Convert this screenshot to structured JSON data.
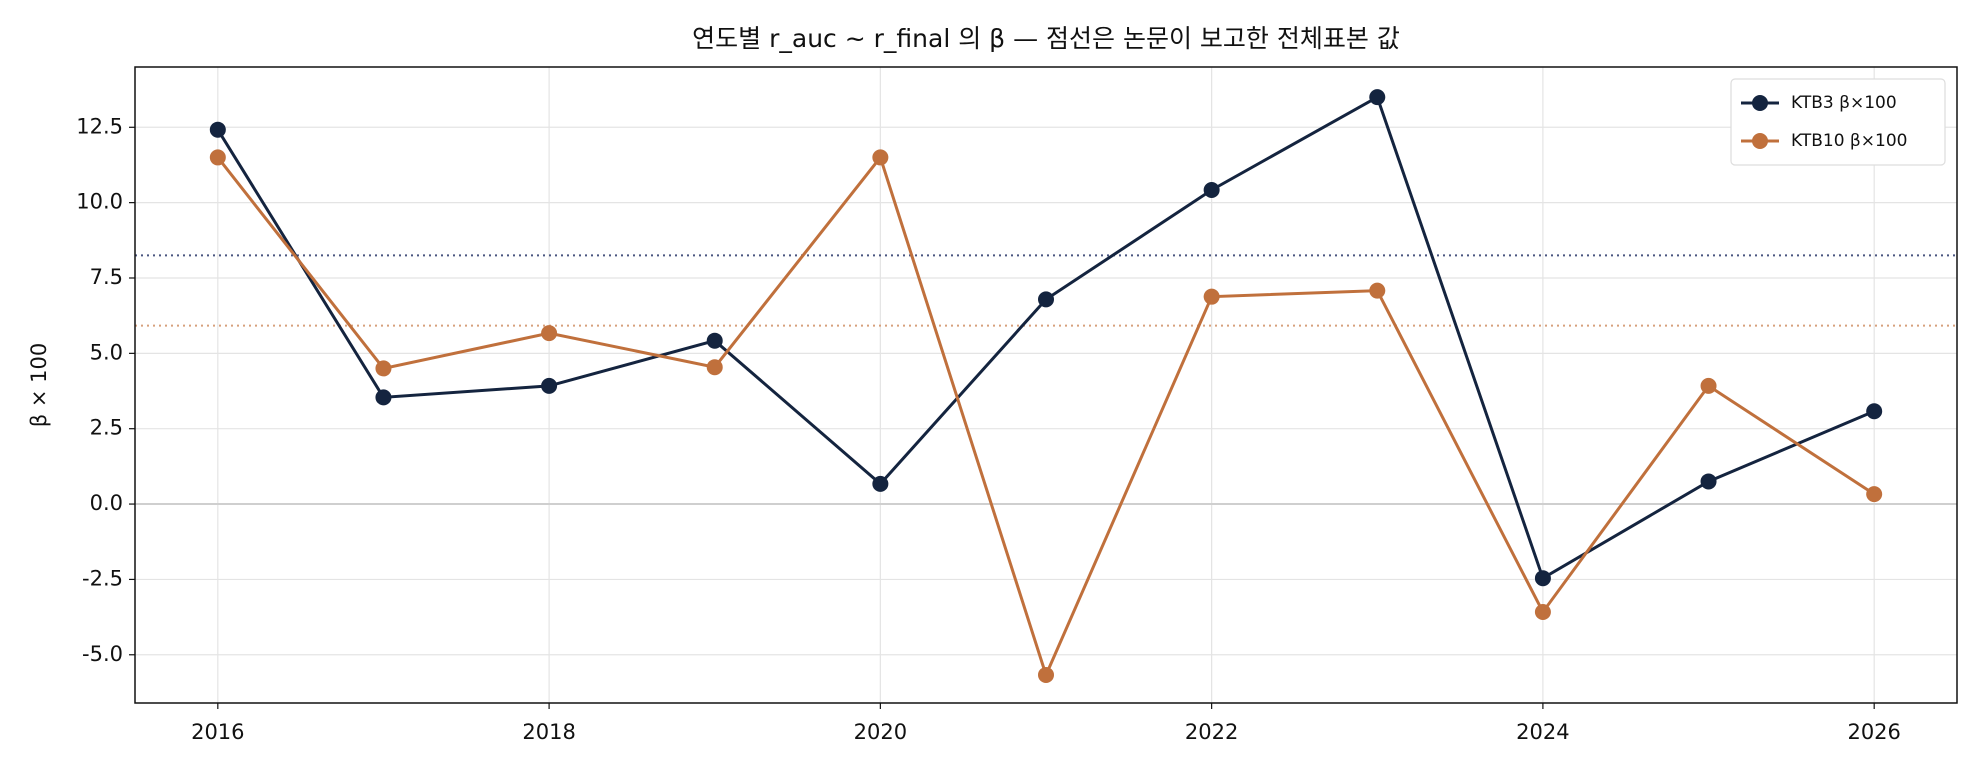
{
  "chart_data": {
    "type": "line",
    "title": "연도별 r_auc ~ r_final 의 β — 점선은 논문이 보고한 전체표본 값",
    "y_label": "β × 100",
    "x": [
      2016,
      2017,
      2018,
      2019,
      2020,
      2021,
      2022,
      2023,
      2024,
      2025,
      2026
    ],
    "series": [
      {
        "name": "KTB3 β×100",
        "color": "#14243f",
        "reference": 8.25,
        "reference_color": "#4a5680",
        "values": [
          12.42,
          3.54,
          3.92,
          5.42,
          0.67,
          6.79,
          10.42,
          13.5,
          -2.46,
          0.75,
          3.08
        ]
      },
      {
        "name": "KTB10 β×100",
        "color": "#c0703c",
        "reference": 5.92,
        "reference_color": "#d6a07c",
        "values": [
          11.5,
          4.5,
          5.67,
          4.54,
          11.5,
          -5.67,
          6.88,
          7.08,
          -3.58,
          3.92,
          0.33
        ]
      }
    ],
    "xlim": [
      2015.5,
      2026.5
    ],
    "ylim": [
      -6.6,
      14.5
    ],
    "xticks": [
      2016,
      2018,
      2020,
      2022,
      2024,
      2026
    ],
    "yticks": [
      {
        "value": -5,
        "label": "-5.0"
      },
      -2.5,
      {
        "value": 0,
        "label": "0.0"
      },
      2.5,
      {
        "value": 5,
        "label": "5.0"
      },
      7.5,
      {
        "value": 10,
        "label": "10.0"
      },
      12.5
    ],
    "grid": true,
    "zero_line": true,
    "legend": "upper-right"
  }
}
